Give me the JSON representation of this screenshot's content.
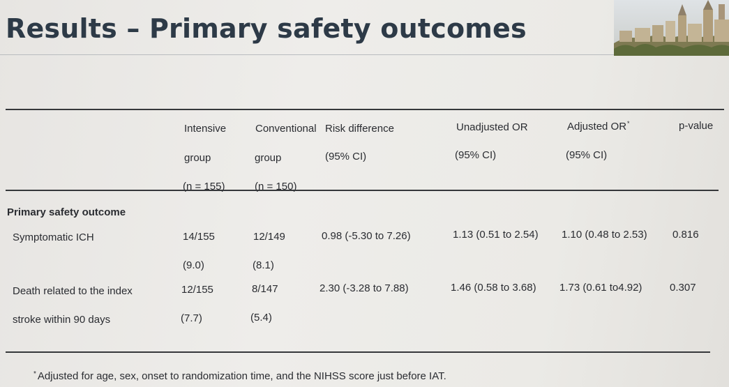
{
  "slide": {
    "title": "Results – Primary safety outcomes"
  },
  "table": {
    "header": {
      "intensive": [
        "Intensive",
        "group",
        "(n = 155)"
      ],
      "conventional": [
        "Conventional",
        "group",
        "(n = 150)"
      ],
      "risk_difference": [
        "Risk difference",
        "(95% CI)"
      ],
      "unadjusted_or": [
        "Unadjusted OR",
        "(95% CI)"
      ],
      "adjusted_or": [
        "Adjusted OR",
        "(95% CI)"
      ],
      "adjusted_or_mark": "*",
      "p_value": "p-value"
    },
    "section_label": "Primary safety outcome",
    "rows": [
      {
        "label": [
          "Symptomatic ICH"
        ],
        "intensive": [
          "14/155",
          "(9.0)"
        ],
        "conventional": [
          "12/149",
          "(8.1)"
        ],
        "risk_difference": "0.98 (-5.30 to 7.26)",
        "unadjusted_or": "1.13 (0.51 to 2.54)",
        "adjusted_or": "1.10 (0.48 to 2.53)",
        "p_value": "0.816"
      },
      {
        "label": [
          "Death related to the index",
          "stroke within 90 days"
        ],
        "intensive": [
          "12/155",
          "(7.7)"
        ],
        "conventional": [
          "8/147",
          "(5.4)"
        ],
        "risk_difference": "2.30 (-3.28 to 7.88)",
        "unadjusted_or": "1.46 (0.58 to 3.68)",
        "adjusted_or": "1.73 (0.61 to4.92)",
        "p_value": "0.307"
      }
    ]
  },
  "footnote": {
    "mark": "*",
    "text": "Adjusted for age, sex, onset to randomization time, and the NIHSS score just before IAT."
  },
  "colors": {
    "title": "#2d3a47",
    "text": "#2a2c31",
    "rule": "#35373a",
    "background": "#eeedea"
  }
}
